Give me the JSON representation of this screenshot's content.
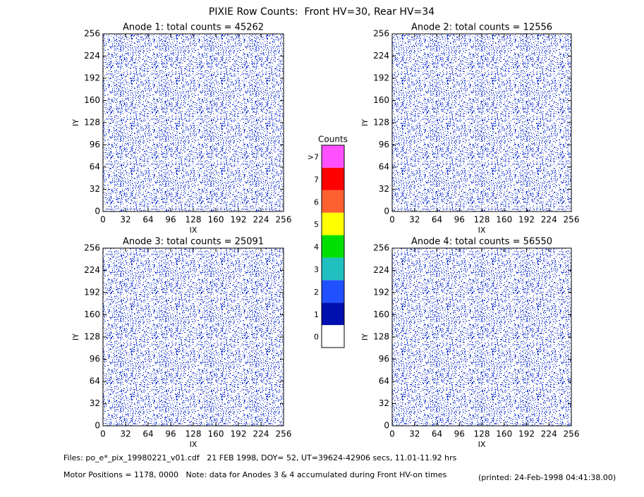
{
  "title": "PIXIE Row Counts:  Front HV=30, Rear HV=34",
  "chart_data": [
    {
      "type": "heatmap",
      "title": "Anode 1: total counts = 45262",
      "xlabel": "IX",
      "ylabel": "IY",
      "xlim": [
        0,
        256
      ],
      "ylim": [
        0,
        256
      ],
      "xticks": [
        0,
        32,
        64,
        96,
        128,
        160,
        192,
        224,
        256
      ],
      "yticks": [
        0,
        32,
        64,
        96,
        128,
        160,
        192,
        224,
        256
      ]
    },
    {
      "type": "heatmap",
      "title": "Anode 2: total counts = 12556",
      "xlabel": "IX",
      "ylabel": "IY",
      "xlim": [
        0,
        256
      ],
      "ylim": [
        0,
        256
      ],
      "xticks": [
        0,
        32,
        64,
        96,
        128,
        160,
        192,
        224,
        256
      ],
      "yticks": [
        0,
        32,
        64,
        96,
        128,
        160,
        192,
        224,
        256
      ]
    },
    {
      "type": "heatmap",
      "title": "Anode 3: total counts = 25091",
      "xlabel": "IX",
      "ylabel": "IY",
      "xlim": [
        0,
        256
      ],
      "ylim": [
        0,
        256
      ],
      "xticks": [
        0,
        32,
        64,
        96,
        128,
        160,
        192,
        224,
        256
      ],
      "yticks": [
        0,
        32,
        64,
        96,
        128,
        160,
        192,
        224,
        256
      ]
    },
    {
      "type": "heatmap",
      "title": "Anode 4: total counts = 56550",
      "xlabel": "IX",
      "ylabel": "IY",
      "xlim": [
        0,
        256
      ],
      "ylim": [
        0,
        256
      ],
      "xticks": [
        0,
        32,
        64,
        96,
        128,
        160,
        192,
        224,
        256
      ],
      "yticks": [
        0,
        32,
        64,
        96,
        128,
        160,
        192,
        224,
        256
      ]
    }
  ],
  "colorbar": {
    "title": "Counts",
    "labels": [
      "0",
      "1",
      "2",
      "3",
      "4",
      "5",
      "6",
      "7",
      ">7"
    ],
    "colors": [
      "#ffffff",
      "#0010b0",
      "#2050ff",
      "#20c0c0",
      "#00e000",
      "#ffff00",
      "#ff6030",
      "#ff0000",
      "#ff50ff"
    ]
  },
  "footer": {
    "files": "Files: po_e*_pix_19980221_v01.cdf   21 FEB 1998, DOY= 52, UT=39624-42906 secs, 11.01-11.92 hrs",
    "motor": "Motor Positions = 1178, 0000   Note: data for Anodes 3 & 4 accumulated during Front HV-on times",
    "printed": "(printed: 24-Feb-1998 04:41:38.00)"
  }
}
